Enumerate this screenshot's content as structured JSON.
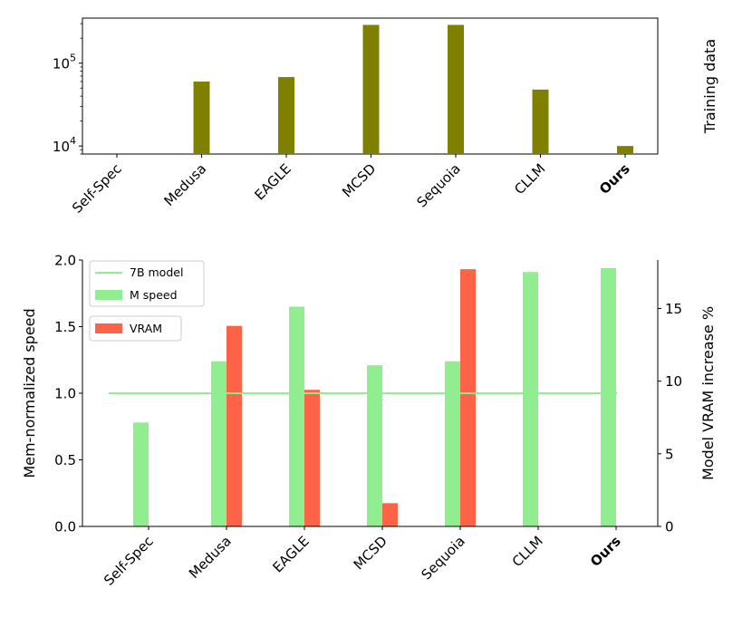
{
  "chart_data": [
    {
      "type": "bar",
      "categories": [
        "Self-Spec",
        "Medusa",
        "EAGLE",
        "MCSD",
        "Sequoia",
        "CLLM",
        "Ours"
      ],
      "bold_category": "Ours",
      "yscale": "log",
      "ylim": [
        8000,
        350000
      ],
      "yticks": [
        {
          "value": 10000,
          "base": "10",
          "exp": "4"
        },
        {
          "value": 100000,
          "base": "10",
          "exp": "5"
        }
      ],
      "ylabel": "",
      "ylabel_right": "Training data",
      "series": [
        {
          "color": "#808000",
          "values": [
            null,
            60000,
            68000,
            290000,
            290000,
            48000,
            10000
          ]
        }
      ]
    },
    {
      "type": "bar",
      "categories": [
        "Self-Spec",
        "Medusa",
        "EAGLE",
        "MCSD",
        "Sequoia",
        "CLLM",
        "Ours"
      ],
      "bold_category": "Ours",
      "ylabel": "Mem-normalized speed",
      "ylabel_right": "Model VRAM increase %",
      "ylim": [
        0,
        2.0
      ],
      "yticks": [
        "0.0",
        "0.5",
        "1.0",
        "1.5",
        "2.0"
      ],
      "ylim_right": [
        0,
        18.33
      ],
      "yticks_right": [
        "0",
        "5",
        "10",
        "15"
      ],
      "reference_line": {
        "name": "7B model",
        "value": 1.0,
        "color": "#90ee90"
      },
      "series": [
        {
          "name": "M speed",
          "axis": "left",
          "color": "#90ee90",
          "values": [
            0.78,
            1.24,
            1.65,
            1.21,
            1.24,
            1.91,
            1.94
          ]
        },
        {
          "name": "VRAM",
          "axis": "right",
          "color": "#ff6347",
          "values": [
            null,
            13.8,
            9.4,
            1.6,
            17.7,
            null,
            null
          ]
        }
      ]
    }
  ]
}
